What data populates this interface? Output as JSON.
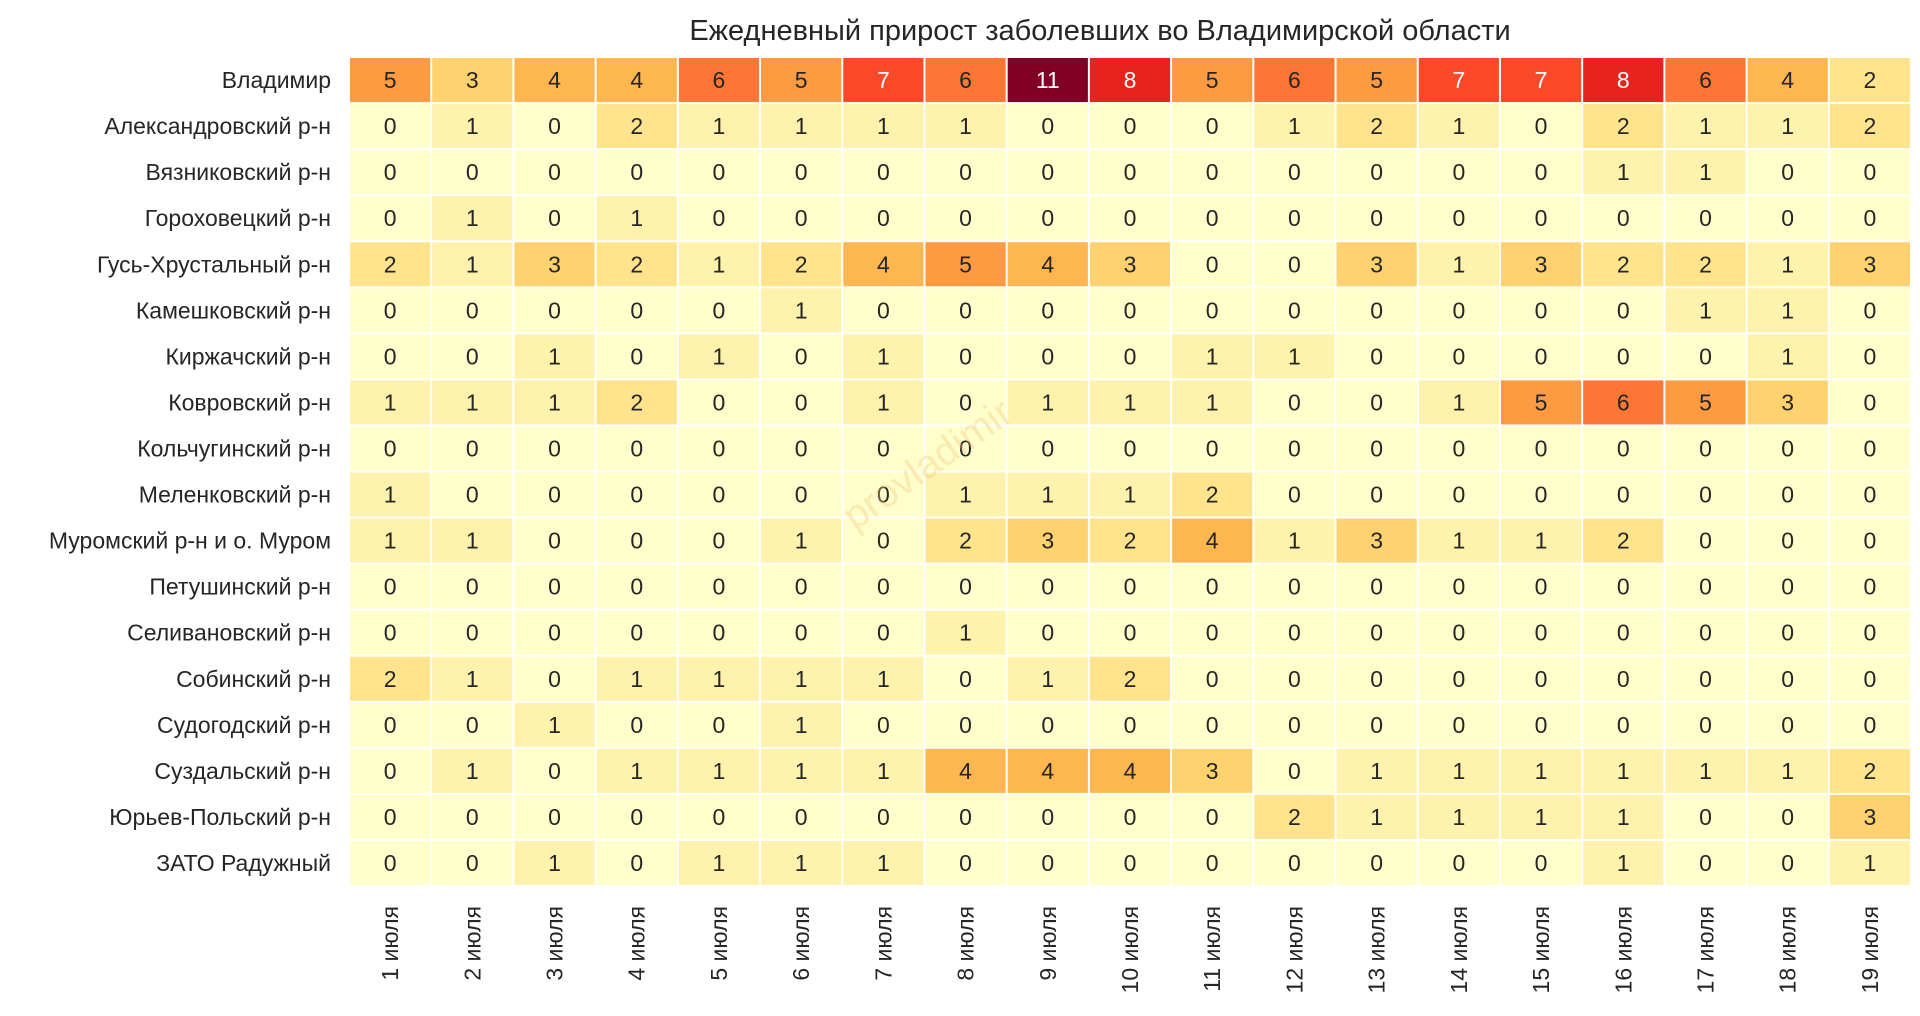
{
  "chart_data": {
    "type": "heatmap",
    "title": "Ежедневный прирост заболевших во Владимирской области",
    "watermark": "provladimir",
    "xlabel": "",
    "ylabel": "",
    "legend": "none",
    "grid": false,
    "color_scale": {
      "min": 0,
      "max": 11,
      "colormap": "YlOrRd (light yellow to dark crimson)"
    },
    "columns": [
      "1 июля",
      "2 июля",
      "3 июля",
      "4 июля",
      "5 июля",
      "6 июля",
      "7 июля",
      "8 июля",
      "9 июля",
      "10 июля",
      "11 июля",
      "12 июля",
      "13 июля",
      "14 июля",
      "15 июля",
      "16 июля",
      "17 июля",
      "18 июля",
      "19 июля"
    ],
    "rows": [
      "Владимир",
      "Александровский р-н",
      "Вязниковский р-н",
      "Гороховецкий р-н",
      "Гусь-Хрустальный р-н",
      "Камешковский р-н",
      "Киржачский р-н",
      "Ковровский р-н",
      "Кольчугинский р-н",
      "Меленковский р-н",
      "Муромский р-н и о. Муром",
      "Петушинский р-н",
      "Селивановский р-н",
      "Собинский р-н",
      "Судогодский р-н",
      "Суздальский р-н",
      "Юрьев-Польский р-н",
      "ЗАТО Радужный"
    ],
    "values": [
      [
        5,
        3,
        4,
        4,
        6,
        5,
        7,
        6,
        11,
        8,
        5,
        6,
        5,
        7,
        7,
        8,
        6,
        4,
        2
      ],
      [
        0,
        1,
        0,
        2,
        1,
        1,
        1,
        1,
        0,
        0,
        0,
        1,
        2,
        1,
        0,
        2,
        1,
        1,
        2
      ],
      [
        0,
        0,
        0,
        0,
        0,
        0,
        0,
        0,
        0,
        0,
        0,
        0,
        0,
        0,
        0,
        1,
        1,
        0,
        0
      ],
      [
        0,
        1,
        0,
        1,
        0,
        0,
        0,
        0,
        0,
        0,
        0,
        0,
        0,
        0,
        0,
        0,
        0,
        0,
        0
      ],
      [
        2,
        1,
        3,
        2,
        1,
        2,
        4,
        5,
        4,
        3,
        0,
        0,
        3,
        1,
        3,
        2,
        2,
        1,
        3
      ],
      [
        0,
        0,
        0,
        0,
        0,
        1,
        0,
        0,
        0,
        0,
        0,
        0,
        0,
        0,
        0,
        0,
        1,
        1,
        0
      ],
      [
        0,
        0,
        1,
        0,
        1,
        0,
        1,
        0,
        0,
        0,
        1,
        1,
        0,
        0,
        0,
        0,
        0,
        1,
        0
      ],
      [
        1,
        1,
        1,
        2,
        0,
        0,
        1,
        0,
        1,
        1,
        1,
        0,
        0,
        1,
        5,
        6,
        5,
        3,
        0
      ],
      [
        0,
        0,
        0,
        0,
        0,
        0,
        0,
        0,
        0,
        0,
        0,
        0,
        0,
        0,
        0,
        0,
        0,
        0,
        0
      ],
      [
        1,
        0,
        0,
        0,
        0,
        0,
        0,
        1,
        1,
        1,
        2,
        0,
        0,
        0,
        0,
        0,
        0,
        0,
        0
      ],
      [
        1,
        1,
        0,
        0,
        0,
        1,
        0,
        2,
        3,
        2,
        4,
        1,
        3,
        1,
        1,
        2,
        0,
        0,
        0
      ],
      [
        0,
        0,
        0,
        0,
        0,
        0,
        0,
        0,
        0,
        0,
        0,
        0,
        0,
        0,
        0,
        0,
        0,
        0,
        0
      ],
      [
        0,
        0,
        0,
        0,
        0,
        0,
        0,
        1,
        0,
        0,
        0,
        0,
        0,
        0,
        0,
        0,
        0,
        0,
        0
      ],
      [
        2,
        1,
        0,
        1,
        1,
        1,
        1,
        0,
        1,
        2,
        0,
        0,
        0,
        0,
        0,
        0,
        0,
        0,
        0
      ],
      [
        0,
        0,
        1,
        0,
        0,
        1,
        0,
        0,
        0,
        0,
        0,
        0,
        0,
        0,
        0,
        0,
        0,
        0,
        0
      ],
      [
        0,
        1,
        0,
        1,
        1,
        1,
        1,
        4,
        4,
        4,
        3,
        0,
        1,
        1,
        1,
        1,
        1,
        1,
        2
      ],
      [
        0,
        0,
        0,
        0,
        0,
        0,
        0,
        0,
        0,
        0,
        0,
        2,
        1,
        1,
        1,
        1,
        0,
        0,
        3
      ],
      [
        0,
        0,
        1,
        0,
        1,
        1,
        1,
        0,
        0,
        0,
        0,
        0,
        0,
        0,
        0,
        1,
        0,
        0,
        1
      ]
    ]
  }
}
